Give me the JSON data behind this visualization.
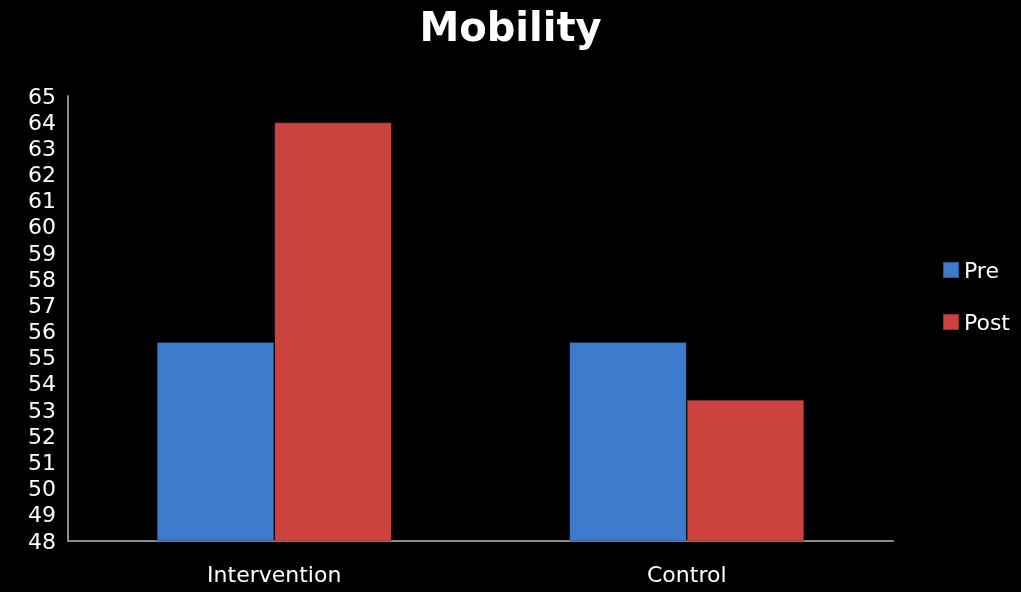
{
  "chart_data": {
    "type": "bar",
    "title": "Mobility",
    "categories": [
      "Intervention",
      "Control"
    ],
    "series": [
      {
        "name": "Pre",
        "color": "#3d7acb",
        "values": [
          55.6,
          55.6
        ]
      },
      {
        "name": "Post",
        "color": "#cc423e",
        "values": [
          64,
          53.4
        ]
      }
    ],
    "ylim": [
      48,
      65
    ],
    "yticks": [
      48,
      49,
      50,
      51,
      52,
      53,
      54,
      55,
      56,
      57,
      58,
      59,
      60,
      61,
      62,
      63,
      64,
      65
    ],
    "grid": false,
    "legend": "right"
  }
}
